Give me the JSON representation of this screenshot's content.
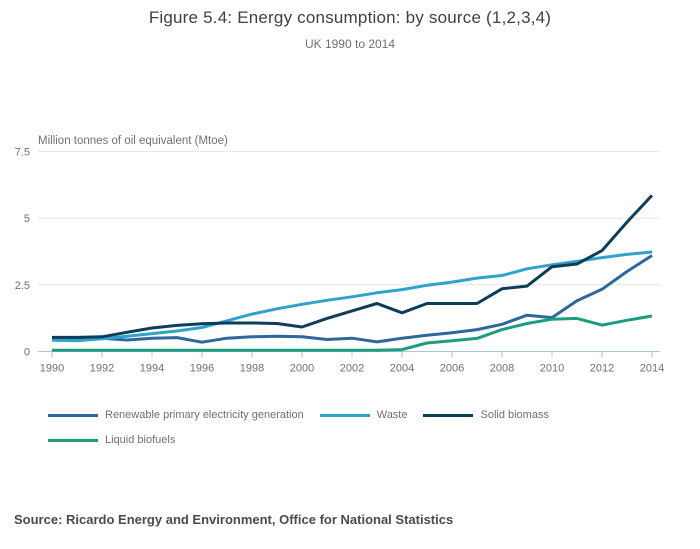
{
  "chart_data": {
    "type": "line",
    "title": "Figure 5.4: Energy consumption: by source (1,2,3,4)",
    "subtitle": "UK 1990 to 2014",
    "ylabel": "Million tonnes of oil equivalent (Mtoe)",
    "xlabel": "",
    "x": [
      1990,
      1991,
      1992,
      1993,
      1994,
      1995,
      1996,
      1997,
      1998,
      1999,
      2000,
      2001,
      2002,
      2003,
      2004,
      2005,
      2006,
      2007,
      2008,
      2009,
      2010,
      2011,
      2012,
      2013,
      2014
    ],
    "xticks": [
      1990,
      1992,
      1994,
      1996,
      1998,
      2000,
      2002,
      2004,
      2006,
      2008,
      2010,
      2012,
      2014
    ],
    "yticks": [
      0,
      2.5,
      5,
      7.5
    ],
    "ylim": [
      0,
      7.5
    ],
    "grid": true,
    "legend_position": "bottom-left",
    "colors": {
      "gridline": "#e4e4e4",
      "axis_line": "#a9c6dc",
      "tick_text": "#707070"
    },
    "series": [
      {
        "name": "Renewable primary electricity generation",
        "color": "#2c689b",
        "values": [
          0.5,
          0.47,
          0.5,
          0.43,
          0.5,
          0.52,
          0.35,
          0.5,
          0.55,
          0.57,
          0.55,
          0.45,
          0.5,
          0.36,
          0.5,
          0.61,
          0.7,
          0.82,
          1.02,
          1.36,
          1.27,
          1.9,
          2.33,
          3.0,
          3.6
        ]
      },
      {
        "name": "Waste",
        "color": "#30a2ce",
        "values": [
          0.42,
          0.4,
          0.48,
          0.57,
          0.67,
          0.77,
          0.9,
          1.15,
          1.4,
          1.6,
          1.77,
          1.92,
          2.05,
          2.2,
          2.32,
          2.48,
          2.6,
          2.75,
          2.85,
          3.1,
          3.25,
          3.38,
          3.52,
          3.64,
          3.73
        ]
      },
      {
        "name": "Solid biomass",
        "color": "#0e3d59",
        "values": [
          0.53,
          0.53,
          0.55,
          0.72,
          0.88,
          0.98,
          1.04,
          1.07,
          1.07,
          1.05,
          0.92,
          1.24,
          1.52,
          1.8,
          1.45,
          1.8,
          1.8,
          1.8,
          2.35,
          2.45,
          3.18,
          3.28,
          3.78,
          4.85,
          5.85
        ]
      },
      {
        "name": "Liquid biofuels",
        "color": "#1e9c80",
        "values": [
          0.05,
          0.05,
          0.05,
          0.05,
          0.05,
          0.05,
          0.05,
          0.05,
          0.05,
          0.05,
          0.05,
          0.05,
          0.05,
          0.05,
          0.07,
          0.32,
          0.4,
          0.49,
          0.82,
          1.05,
          1.21,
          1.24,
          0.99,
          1.17,
          1.33
        ]
      }
    ]
  },
  "footer": {
    "source": "Source: Ricardo Energy and Environment, Office for National Statistics"
  }
}
